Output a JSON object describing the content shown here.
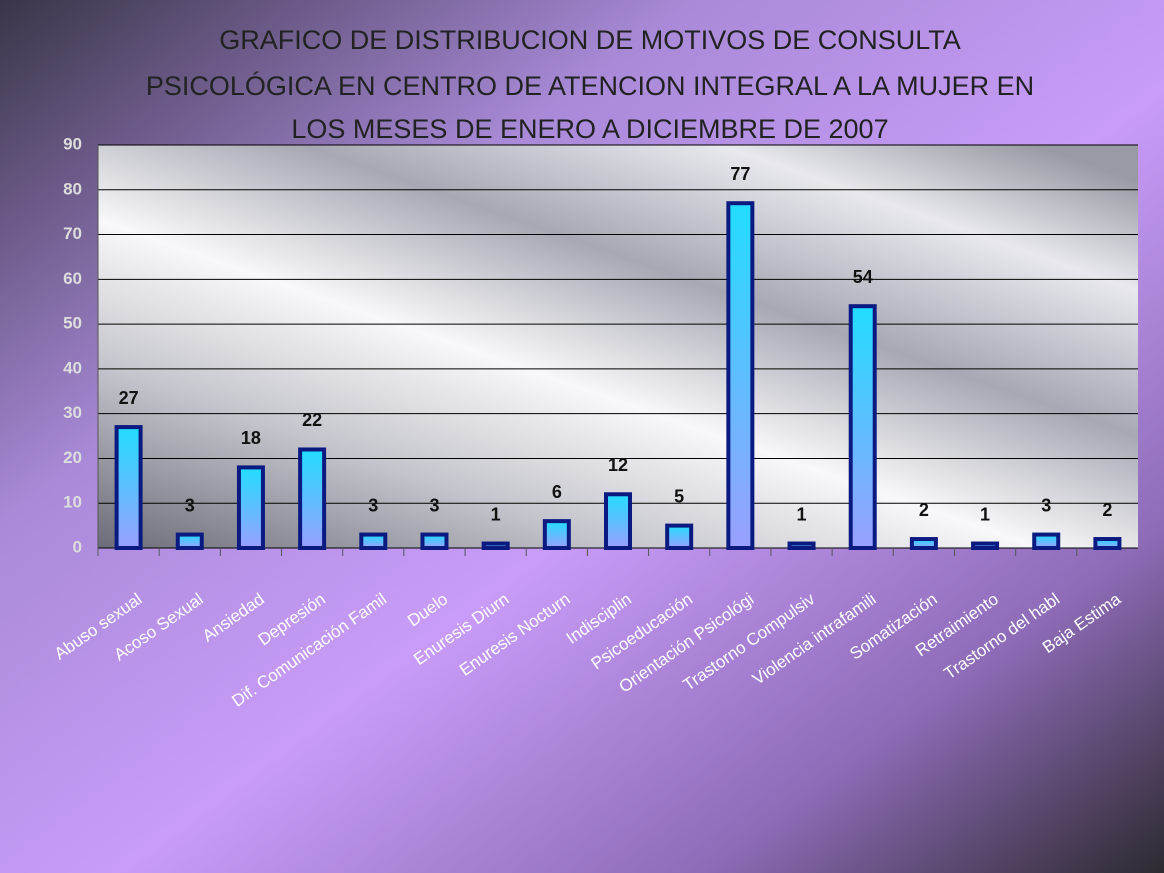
{
  "chart_data": {
    "type": "bar",
    "title": [
      "GRAFICO DE DISTRIBUCION DE MOTIVOS DE CONSULTA",
      "PSICOLÓGICA EN CENTRO DE ATENCION INTEGRAL A LA MUJER EN",
      "LOS MESES DE ENERO A  DICIEMBRE  DE  2007"
    ],
    "categories": [
      "Abuso sexual",
      "Acoso Sexual",
      "Ansiedad",
      "Depresión",
      "Dif. Comunicación Famil",
      "Duelo",
      "Enuresis Diurn",
      "Enuresis Nocturn",
      "Indisciplin",
      "Psicoeducación",
      "Orientación Psicológi",
      "Trastorno Compulsiv",
      "Violencia intrafamili",
      "Somatización",
      "Retraimiento",
      "Trastorno del habl",
      "Baja Estima"
    ],
    "values": [
      27,
      3,
      18,
      22,
      3,
      3,
      1,
      6,
      12,
      5,
      77,
      1,
      54,
      2,
      1,
      3,
      2
    ],
    "color": "#33ccff",
    "ylim": [
      0,
      90
    ],
    "yticks": [
      0,
      10,
      20,
      30,
      40,
      50,
      60,
      70,
      80,
      90
    ],
    "grid": true
  }
}
